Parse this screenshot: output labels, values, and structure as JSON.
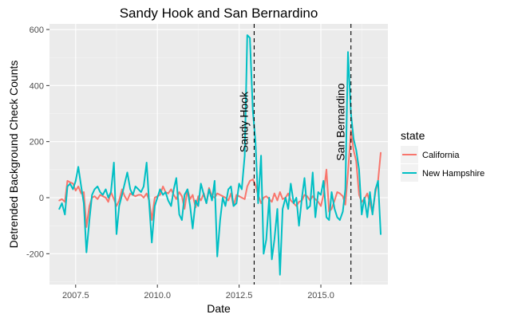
{
  "chart_data": {
    "type": "line",
    "title": "Sandy Hook and San Bernardino",
    "xlabel": "Date",
    "ylabel": "Detrended Background Check Counts",
    "xlim": [
      2006.7,
      2017.05
    ],
    "ylim": [
      -310,
      620
    ],
    "x_ticks": [
      2007.5,
      2010.0,
      2012.5,
      2015.0
    ],
    "x_tick_labels": [
      "2007.5",
      "2010.0",
      "2012.5",
      "2015.0"
    ],
    "y_ticks": [
      -200,
      0,
      200,
      400,
      600
    ],
    "y_tick_labels": [
      "-200",
      "0",
      "200",
      "400",
      "600"
    ],
    "grid": true,
    "legend": {
      "title": "state",
      "position": "right"
    },
    "series": [
      {
        "name": "California",
        "color": "#F8766D",
        "x": [
          2007.0,
          2007.08,
          2007.17,
          2007.25,
          2007.33,
          2007.42,
          2007.5,
          2007.58,
          2007.67,
          2007.75,
          2007.83,
          2007.92,
          2008.0,
          2008.08,
          2008.17,
          2008.25,
          2008.33,
          2008.42,
          2008.5,
          2008.58,
          2008.67,
          2008.75,
          2008.83,
          2008.92,
          2009.0,
          2009.08,
          2009.17,
          2009.25,
          2009.33,
          2009.42,
          2009.5,
          2009.58,
          2009.67,
          2009.75,
          2009.83,
          2009.92,
          2010.0,
          2010.08,
          2010.17,
          2010.25,
          2010.33,
          2010.42,
          2010.5,
          2010.58,
          2010.67,
          2010.75,
          2010.83,
          2010.92,
          2011.0,
          2011.08,
          2011.17,
          2011.25,
          2011.33,
          2011.42,
          2011.5,
          2011.58,
          2011.67,
          2011.75,
          2011.83,
          2011.92,
          2012.0,
          2012.08,
          2012.17,
          2012.25,
          2012.33,
          2012.42,
          2012.5,
          2012.58,
          2012.67,
          2012.75,
          2012.83,
          2012.92,
          2013.0,
          2013.08,
          2013.17,
          2013.25,
          2013.33,
          2013.42,
          2013.5,
          2013.58,
          2013.67,
          2013.75,
          2013.83,
          2013.92,
          2014.0,
          2014.08,
          2014.17,
          2014.25,
          2014.33,
          2014.42,
          2014.5,
          2014.58,
          2014.67,
          2014.75,
          2014.83,
          2014.92,
          2015.0,
          2015.08,
          2015.17,
          2015.25,
          2015.33,
          2015.42,
          2015.5,
          2015.58,
          2015.67,
          2015.75,
          2015.83,
          2015.92,
          2016.0,
          2016.08,
          2016.17,
          2016.25,
          2016.33,
          2016.42,
          2016.5,
          2016.58,
          2016.67,
          2016.75,
          2016.83
        ],
        "values": [
          -10,
          -5,
          -15,
          60,
          55,
          50,
          25,
          40,
          15,
          20,
          -105,
          -30,
          0,
          5,
          -5,
          10,
          5,
          0,
          -15,
          20,
          -5,
          -30,
          -10,
          30,
          5,
          -10,
          15,
          10,
          5,
          10,
          10,
          0,
          15,
          -10,
          -80,
          0,
          5,
          10,
          40,
          20,
          15,
          30,
          10,
          -5,
          20,
          5,
          -40,
          30,
          -5,
          10,
          -35,
          5,
          -10,
          15,
          -20,
          35,
          5,
          0,
          15,
          10,
          5,
          0,
          -10,
          15,
          -30,
          10,
          5,
          0,
          -5,
          40,
          60,
          65,
          45,
          10,
          -20,
          0,
          5,
          -5,
          -15,
          15,
          -10,
          20,
          -5,
          0,
          15,
          -10,
          -20,
          -30,
          -15,
          -10,
          10,
          5,
          -10,
          5,
          -5,
          -15,
          -30,
          10,
          100,
          -50,
          -40,
          -10,
          20,
          15,
          5,
          -25,
          90,
          240,
          170,
          130,
          10,
          -15,
          -5,
          15,
          -20,
          -55,
          20,
          60,
          160
        ]
      },
      {
        "name": "New Hampshire",
        "color": "#00BFC4",
        "x": [
          2007.0,
          2007.08,
          2007.17,
          2007.25,
          2007.33,
          2007.42,
          2007.5,
          2007.58,
          2007.67,
          2007.75,
          2007.83,
          2007.92,
          2008.0,
          2008.08,
          2008.17,
          2008.25,
          2008.33,
          2008.42,
          2008.5,
          2008.58,
          2008.67,
          2008.75,
          2008.83,
          2008.92,
          2009.0,
          2009.08,
          2009.17,
          2009.25,
          2009.33,
          2009.42,
          2009.5,
          2009.58,
          2009.67,
          2009.75,
          2009.83,
          2009.92,
          2010.0,
          2010.08,
          2010.17,
          2010.25,
          2010.33,
          2010.42,
          2010.5,
          2010.58,
          2010.67,
          2010.75,
          2010.83,
          2010.92,
          2011.0,
          2011.08,
          2011.17,
          2011.25,
          2011.33,
          2011.42,
          2011.5,
          2011.58,
          2011.67,
          2011.75,
          2011.83,
          2011.92,
          2012.0,
          2012.08,
          2012.17,
          2012.25,
          2012.33,
          2012.42,
          2012.5,
          2012.58,
          2012.67,
          2012.75,
          2012.83,
          2012.92,
          2013.0,
          2013.08,
          2013.17,
          2013.25,
          2013.33,
          2013.42,
          2013.5,
          2013.58,
          2013.67,
          2013.75,
          2013.83,
          2013.92,
          2014.0,
          2014.08,
          2014.17,
          2014.25,
          2014.33,
          2014.42,
          2014.5,
          2014.58,
          2014.67,
          2014.75,
          2014.83,
          2014.92,
          2015.0,
          2015.08,
          2015.17,
          2015.25,
          2015.33,
          2015.42,
          2015.5,
          2015.58,
          2015.67,
          2015.75,
          2015.83,
          2015.92,
          2016.0,
          2016.08,
          2016.17,
          2016.25,
          2016.33,
          2016.42,
          2016.5,
          2016.58,
          2016.67,
          2016.75,
          2016.83
        ],
        "values": [
          -40,
          -20,
          -60,
          40,
          50,
          30,
          60,
          110,
          40,
          -20,
          -195,
          -80,
          10,
          30,
          40,
          20,
          10,
          30,
          0,
          20,
          125,
          -130,
          -30,
          10,
          50,
          90,
          30,
          10,
          40,
          30,
          20,
          40,
          125,
          -20,
          -160,
          -30,
          0,
          30,
          10,
          20,
          -10,
          -30,
          30,
          70,
          -60,
          -80,
          10,
          30,
          -30,
          -110,
          -10,
          -30,
          50,
          10,
          -20,
          30,
          -10,
          60,
          -210,
          -80,
          0,
          -30,
          30,
          40,
          -30,
          -20,
          50,
          30,
          150,
          580,
          570,
          310,
          200,
          -20,
          150,
          -200,
          -150,
          0,
          -220,
          -150,
          -40,
          -275,
          -40,
          0,
          -40,
          50,
          -20,
          0,
          -100,
          0,
          70,
          -40,
          -30,
          90,
          -70,
          20,
          10,
          60,
          -70,
          -80,
          20,
          -40,
          -70,
          -80,
          -50,
          30,
          520,
          300,
          210,
          170,
          100,
          -60,
          0,
          -70,
          20,
          -60,
          30,
          60,
          -130
        ]
      }
    ],
    "annotations": [
      {
        "label": "Sandy Hook",
        "x": 2012.96
      },
      {
        "label": "San Bernardino",
        "x": 2015.92
      }
    ]
  }
}
